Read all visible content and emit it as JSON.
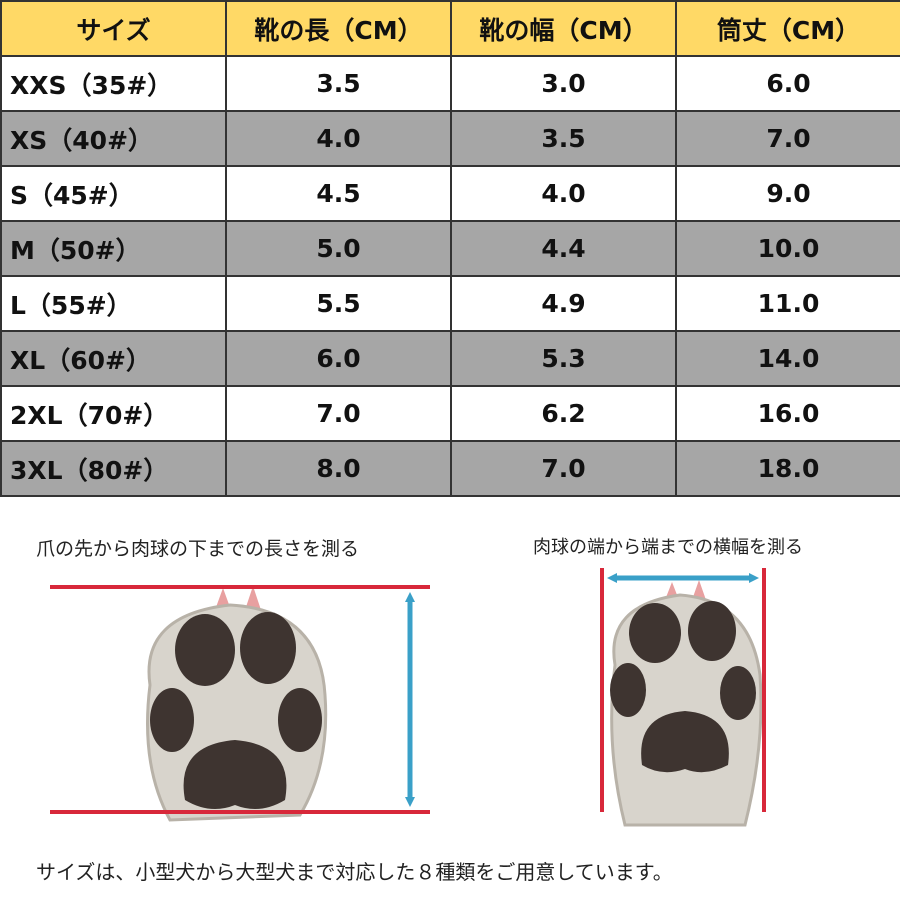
{
  "table": {
    "header": [
      "サイズ",
      "靴の長（CM）",
      "靴の幅（CM）",
      "筒丈（CM）"
    ],
    "rows": [
      [
        "XXS（35#）",
        "3.5",
        "3.0",
        "6.0"
      ],
      [
        "XS（40#）",
        "4.0",
        "3.5",
        "7.0"
      ],
      [
        "S（45#）",
        "4.5",
        "4.0",
        "9.0"
      ],
      [
        "M（50#）",
        "5.0",
        "4.4",
        "10.0"
      ],
      [
        "L（55#）",
        "5.5",
        "4.9",
        "11.0"
      ],
      [
        "XL（60#）",
        "6.0",
        "5.3",
        "14.0"
      ],
      [
        "2XL（70#）",
        "7.0",
        "6.2",
        "16.0"
      ],
      [
        "3XL（80#）",
        "8.0",
        "7.0",
        "18.0"
      ]
    ]
  },
  "captions": {
    "length": "爪の先から肉球の下までの長さを測る",
    "width": "肉球の端から端までの横幅を測る"
  },
  "footer": "サイズは、小型犬から大型犬まで対応した８種類をご用意しています。"
}
